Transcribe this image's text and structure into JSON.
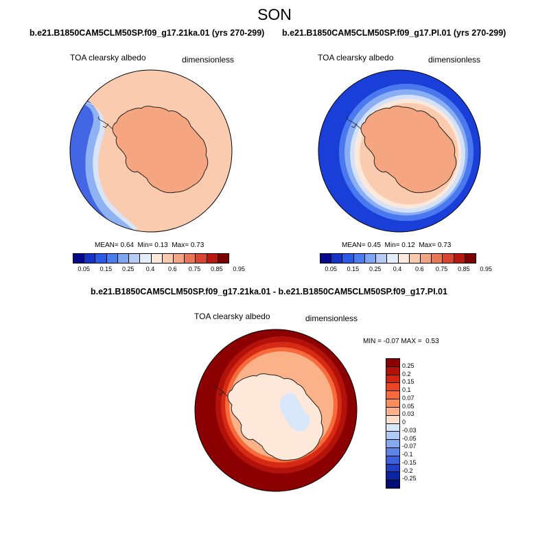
{
  "season": "SON",
  "panels": [
    {
      "title": "b.e21.B1850CAM5CLM50SP.f09_g17.21ka.01 (yrs 270-299)",
      "field": "TOA clearsky albedo",
      "units": "dimensionless",
      "stats": {
        "mean_label": "MEAN=",
        "mean": "0.64",
        "min_label": "Min=",
        "min": "0.13",
        "max_label": "Max=",
        "max": "0.73"
      }
    },
    {
      "title": "b.e21.B1850CAM5CLM50SP.f09_g17.PI.01 (yrs 270-299)",
      "field": "TOA clearsky albedo",
      "units": "dimensionless",
      "stats": {
        "mean_label": "MEAN=",
        "mean": "0.45",
        "min_label": "Min=",
        "min": "0.12",
        "max_label": "Max=",
        "max": "0.73"
      }
    }
  ],
  "albedo_colorbar": {
    "labels": [
      "0.05",
      "0.15",
      "0.25",
      "0.4",
      "0.6",
      "0.75",
      "0.85",
      "0.95"
    ],
    "colors": [
      "#050a8c",
      "#1434c8",
      "#2a5ae6",
      "#4a7ef0",
      "#7fa6f3",
      "#b6ccf6",
      "#e4eefb",
      "#fde9dc",
      "#f8c9ad",
      "#f3a482",
      "#ea7756",
      "#d94530",
      "#b8190f",
      "#7d0000"
    ]
  },
  "difference": {
    "title": "b.e21.B1850CAM5CLM50SP.f09_g17.21ka.01 - b.e21.B1850CAM5CLM50SP.f09_g17.PI.01",
    "field": "TOA clearsky albedo",
    "units": "dimensionless",
    "minmax": {
      "min_label": "MIN =",
      "min": "-0.07",
      "max_label": "MAX =",
      "max": "0.53"
    }
  },
  "diff_colorbar": {
    "labels": [
      "0.25",
      "0.2",
      "0.15",
      "0.1",
      "0.07",
      "0.05",
      "0.03",
      "0",
      "-0.03",
      "-0.05",
      "-0.07",
      "-0.1",
      "-0.15",
      "-0.2",
      "-0.25"
    ],
    "colors": [
      "#8b0000",
      "#b3120a",
      "#d32512",
      "#ea4422",
      "#f66a3c",
      "#f98e5c",
      "#fbb288",
      "#fde0cc",
      "#d8e8fa",
      "#afcaf4",
      "#86a8ee",
      "#5e85e6",
      "#3b62dc",
      "#1e3fc6",
      "#0b24a2",
      "#020e74"
    ]
  },
  "map_colors": {
    "land": "#f5a57f",
    "ocean_high": "#fbcbb0",
    "ice_edge_blue": "#2f5cea",
    "deep_blue": "#1a3fd8",
    "diff_dark": "#8b0000",
    "diff_red": "#d62a14",
    "diff_pale": "#fde8da",
    "diff_lightblue": "#d8e8fa"
  }
}
